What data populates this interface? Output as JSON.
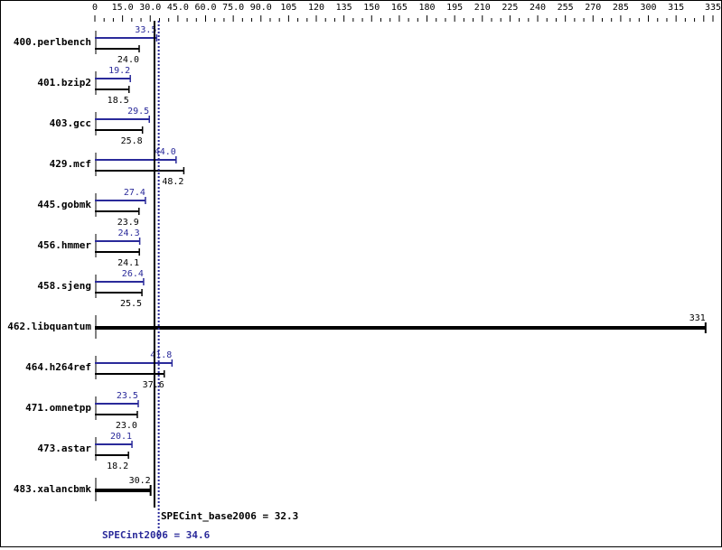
{
  "chart_data": {
    "type": "bar",
    "title": "",
    "xlabel": "",
    "ylabel": "",
    "xlim": [
      0,
      335
    ],
    "x_ticks": [
      "0",
      "15.0",
      "30.0",
      "45.0",
      "60.0",
      "75.0",
      "90.0",
      "105",
      "120",
      "135",
      "150",
      "165",
      "180",
      "195",
      "210",
      "225",
      "240",
      "255",
      "270",
      "285",
      "300",
      "315",
      "335"
    ],
    "categories": [
      "400.perlbench",
      "401.bzip2",
      "403.gcc",
      "429.mcf",
      "445.gobmk",
      "456.hmmer",
      "458.sjeng",
      "462.libquantum",
      "464.h264ref",
      "471.omnetpp",
      "473.astar",
      "483.xalancbmk"
    ],
    "series": [
      {
        "name": "SPECint2006 (peak)",
        "color": "#2a2a9a",
        "values": [
          33.5,
          19.2,
          29.5,
          44.0,
          27.4,
          24.3,
          26.4,
          null,
          41.8,
          23.5,
          20.1,
          null
        ]
      },
      {
        "name": "SPECint_base2006 (base)",
        "color": "#000000",
        "values": [
          24.0,
          18.5,
          25.8,
          48.2,
          23.9,
          24.1,
          25.5,
          331,
          37.6,
          23.0,
          18.2,
          30.2
        ]
      }
    ],
    "summary": {
      "base_label": "SPECint_base2006 = 32.3",
      "base_value": 32.3,
      "peak_label": "SPECint2006 = 34.6",
      "peak_value": 34.6
    },
    "grid": false,
    "legend": "none"
  }
}
